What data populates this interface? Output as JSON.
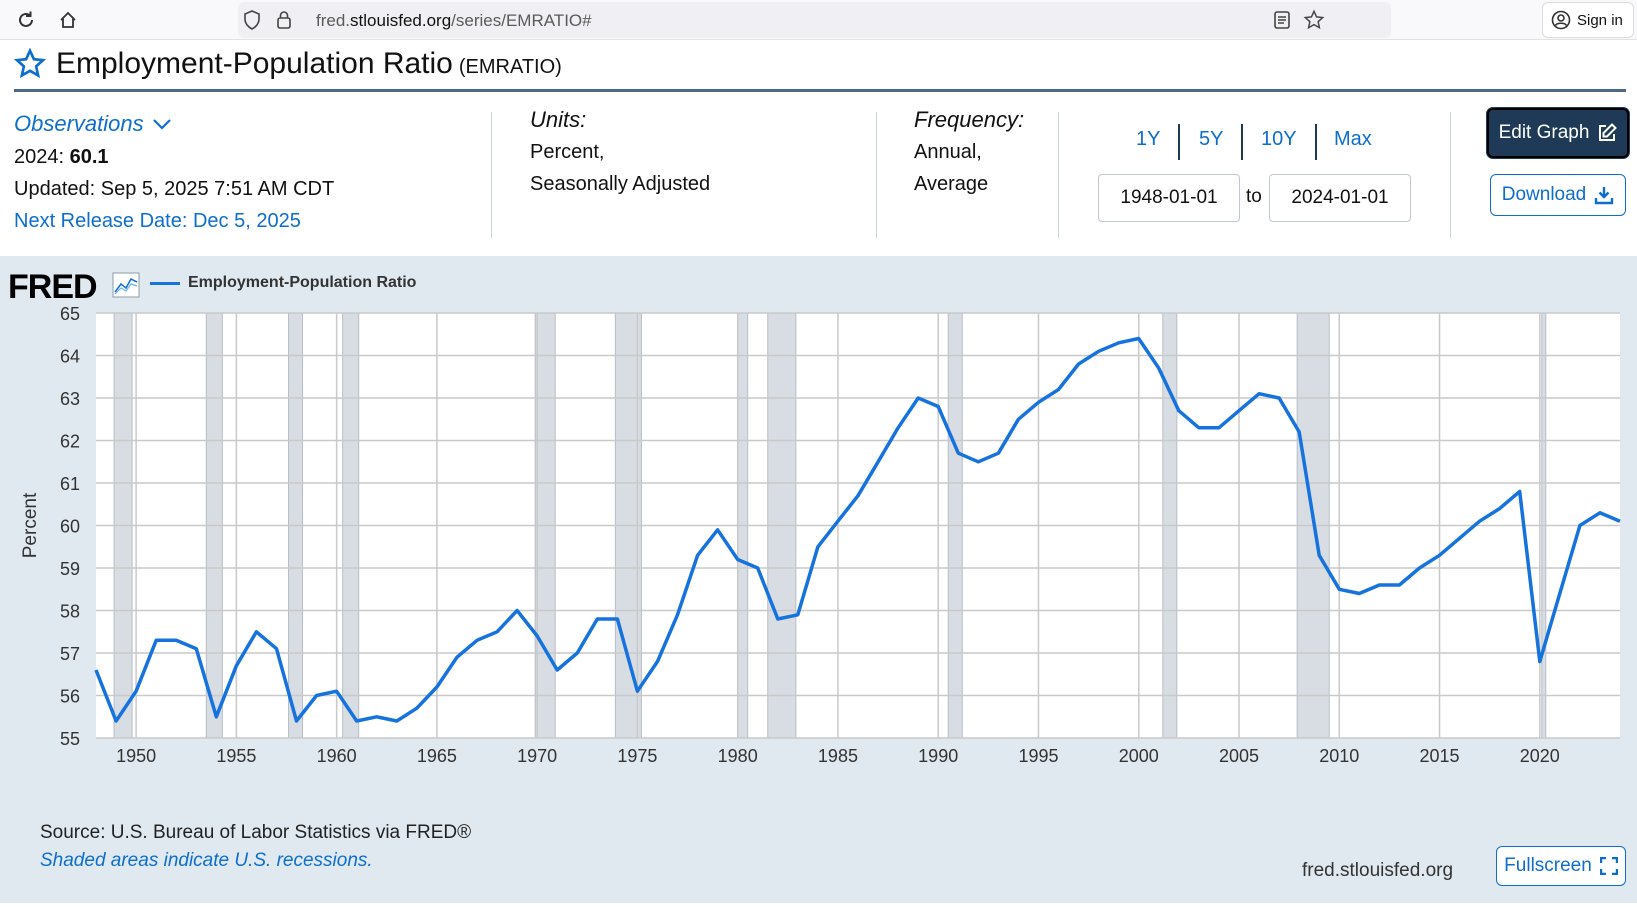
{
  "browser": {
    "url_prefix": "fred.",
    "url_host": "stlouisfed.org",
    "url_path": "/series/EMRATIO#",
    "signin_label": "Sign in"
  },
  "header": {
    "title": "Employment-Population Ratio",
    "series_id": "(EMRATIO)"
  },
  "observations": {
    "label": "Observations",
    "latest_label": "2024:",
    "latest_value": "60.1",
    "updated": "Updated: Sep 5, 2025 7:51 AM CDT",
    "next_release": "Next Release Date: Dec 5, 2025"
  },
  "units": {
    "label": "Units:",
    "line1": "Percent,",
    "line2": "Seasonally Adjusted"
  },
  "frequency": {
    "label": "Frequency:",
    "line1": "Annual,",
    "line2": "Average"
  },
  "range": {
    "buttons": [
      "1Y",
      "5Y",
      "10Y",
      "Max"
    ],
    "start": "1948-01-01",
    "to_label": "to",
    "end": "2024-01-01"
  },
  "actions": {
    "edit_label": "Edit Graph",
    "download_label": "Download",
    "fullscreen_label": "Fullscreen"
  },
  "chart_panel": {
    "logo": "FRED",
    "source": "Source: U.S. Bureau of Labor Statistics via FRED®",
    "shade_note": "Shaded areas indicate U.S. recessions.",
    "site": "fred.stlouisfed.org"
  },
  "colors": {
    "series": "#1672dd",
    "recession": "#d8dde3",
    "link": "#0d6ecd",
    "navy": "#1e3a56"
  },
  "chart_data": {
    "type": "line",
    "title": "",
    "xlabel": "",
    "ylabel": "Percent",
    "xlim": [
      1948,
      2024
    ],
    "ylim": [
      55,
      65
    ],
    "y_ticks": [
      55,
      56,
      57,
      58,
      59,
      60,
      61,
      62,
      63,
      64,
      65
    ],
    "x_ticks": [
      1950,
      1955,
      1960,
      1965,
      1970,
      1975,
      1980,
      1985,
      1990,
      1995,
      2000,
      2005,
      2010,
      2015,
      2020
    ],
    "grid": true,
    "legend": "top-left",
    "series": [
      {
        "name": "Employment-Population Ratio",
        "x": [
          1948,
          1949,
          1950,
          1951,
          1952,
          1953,
          1954,
          1955,
          1956,
          1957,
          1958,
          1959,
          1960,
          1961,
          1962,
          1963,
          1964,
          1965,
          1966,
          1967,
          1968,
          1969,
          1970,
          1971,
          1972,
          1973,
          1974,
          1975,
          1976,
          1977,
          1978,
          1979,
          1980,
          1981,
          1982,
          1983,
          1984,
          1985,
          1986,
          1987,
          1988,
          1989,
          1990,
          1991,
          1992,
          1993,
          1994,
          1995,
          1996,
          1997,
          1998,
          1999,
          2000,
          2001,
          2002,
          2003,
          2004,
          2005,
          2006,
          2007,
          2008,
          2009,
          2010,
          2011,
          2012,
          2013,
          2014,
          2015,
          2016,
          2017,
          2018,
          2019,
          2020,
          2021,
          2022,
          2023,
          2024
        ],
        "values": [
          56.6,
          55.4,
          56.1,
          57.3,
          57.3,
          57.1,
          55.5,
          56.7,
          57.5,
          57.1,
          55.4,
          56.0,
          56.1,
          55.4,
          55.5,
          55.4,
          55.7,
          56.2,
          56.9,
          57.3,
          57.5,
          58.0,
          57.4,
          56.6,
          57.0,
          57.8,
          57.8,
          56.1,
          56.8,
          57.9,
          59.3,
          59.9,
          59.2,
          59.0,
          57.8,
          57.9,
          59.5,
          60.1,
          60.7,
          61.5,
          62.3,
          63.0,
          62.8,
          61.7,
          61.5,
          61.7,
          62.5,
          62.9,
          63.2,
          63.8,
          64.1,
          64.3,
          64.4,
          63.7,
          62.7,
          62.3,
          62.3,
          62.7,
          63.1,
          63.0,
          62.2,
          59.3,
          58.5,
          58.4,
          58.6,
          58.6,
          59.0,
          59.3,
          59.7,
          60.1,
          60.4,
          60.8,
          56.8,
          58.4,
          60.0,
          60.3,
          60.1
        ]
      }
    ],
    "recessions": [
      [
        1948.9,
        1949.8
      ],
      [
        1953.5,
        1954.3
      ],
      [
        1957.6,
        1958.3
      ],
      [
        1960.3,
        1961.1
      ],
      [
        1969.9,
        1970.9
      ],
      [
        1973.9,
        1975.2
      ],
      [
        1980.0,
        1980.5
      ],
      [
        1981.5,
        1982.9
      ],
      [
        1990.5,
        1991.2
      ],
      [
        2001.2,
        2001.9
      ],
      [
        2007.9,
        2009.5
      ],
      [
        2020.1,
        2020.3
      ]
    ]
  }
}
